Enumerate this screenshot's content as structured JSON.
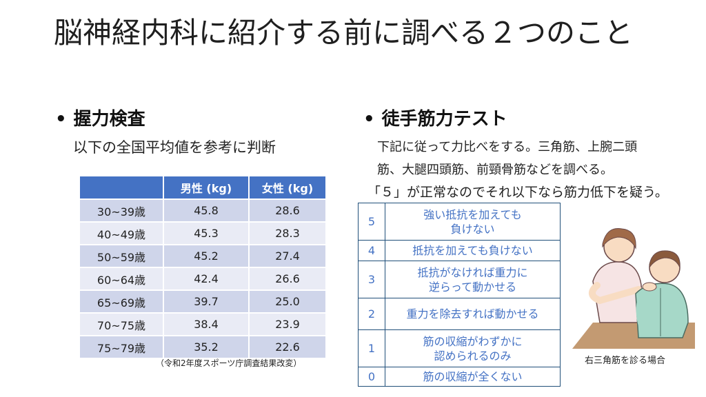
{
  "title": "脳神経内科に紹介する前に調べる２つのこと",
  "left": {
    "heading": "握力検査",
    "subtitle": "以下の全国平均値を参考に判断",
    "table": {
      "headers": [
        "",
        "男性 (kg)",
        "女性 (kg)"
      ],
      "rows": [
        [
          "30~39歳",
          "45.8",
          "28.6"
        ],
        [
          "40~49歳",
          "45.3",
          "28.3"
        ],
        [
          "50~59歳",
          "45.2",
          "27.4"
        ],
        [
          "60~64歳",
          "42.4",
          "26.6"
        ],
        [
          "65~69歳",
          "39.7",
          "25.0"
        ],
        [
          "70~75歳",
          "38.4",
          "23.9"
        ],
        [
          "75~79歳",
          "35.2",
          "22.6"
        ]
      ]
    },
    "source": "（令和2年度スポーツ庁調査結果改変）"
  },
  "right": {
    "heading": "徒手筋力テスト",
    "desc_line1": "下記に従って力比べをする。三角筋、上腕二頭",
    "desc_line2": "筋、大腿四頭筋、前頸骨筋などを調べる。",
    "desc_line3": "「５」が正常なのでそれ以下なら筋力低下を疑う。",
    "mmt": [
      {
        "grade": "5",
        "l1": "強い抵抗を加えても",
        "l2": "負けない"
      },
      {
        "grade": "4",
        "l1": "抵抗を加えても負けない",
        "l2": ""
      },
      {
        "grade": "3",
        "l1": "抵抗がなければ重力に",
        "l2": "逆らって動かせる"
      },
      {
        "grade": "2",
        "l1": "重力を除去すれば動かせる",
        "l2": ""
      },
      {
        "grade": "1",
        "l1": "筋の収縮がわずかに",
        "l2": "認められるのみ"
      },
      {
        "grade": "0",
        "l1": "筋の収縮が全くない",
        "l2": ""
      }
    ],
    "caption": "右三角筋を診る場合"
  },
  "colors": {
    "header_blue": "#4472c4",
    "row_odd": "#cfd5ea",
    "row_even": "#e9ebf5",
    "mmt_border": "#1f4e79"
  }
}
